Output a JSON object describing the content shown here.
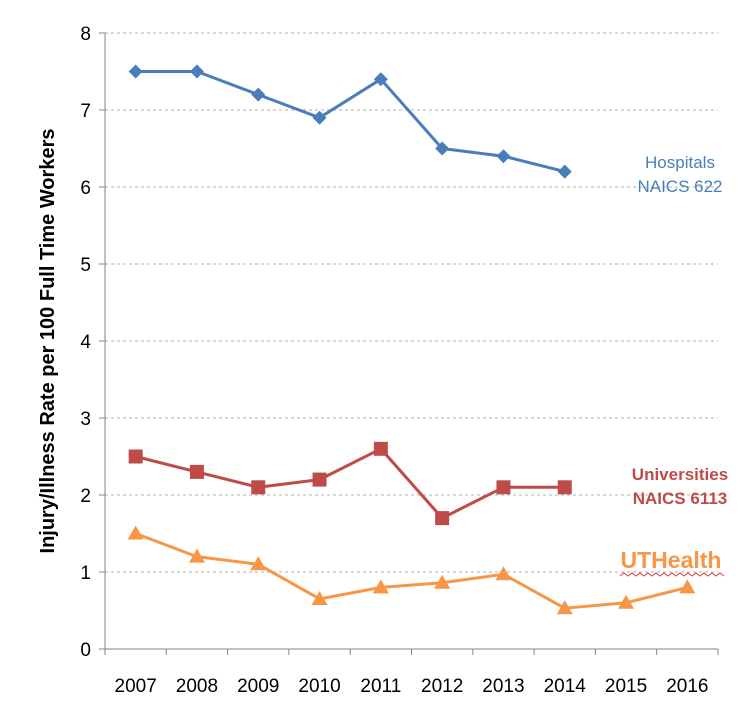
{
  "chart_data": {
    "type": "line",
    "title": "",
    "xlabel": "",
    "ylabel": "Injury/Illness Rate per 100 Full Time Workers",
    "categories": [
      "2007",
      "2008",
      "2009",
      "2010",
      "2011",
      "2012",
      "2013",
      "2014",
      "2015",
      "2016"
    ],
    "ylim": [
      0,
      8
    ],
    "yticks": [
      "0",
      "1",
      "2",
      "3",
      "4",
      "5",
      "6",
      "7",
      "8"
    ],
    "grid": true,
    "series": [
      {
        "name": "Hospitals NAICS 622",
        "label_lines": [
          "Hospitals",
          "NAICS 622"
        ],
        "color": "#4a7ebb",
        "marker": "diamond",
        "values": [
          7.5,
          7.5,
          7.2,
          6.9,
          7.4,
          6.5,
          6.4,
          6.2,
          null,
          null
        ]
      },
      {
        "name": "Universities NAICS 6113",
        "label_lines": [
          "Universities",
          "NAICS 6113"
        ],
        "color": "#be4b48",
        "marker": "square",
        "values": [
          2.5,
          2.3,
          2.1,
          2.2,
          2.6,
          1.7,
          2.1,
          2.1,
          null,
          null
        ]
      },
      {
        "name": "UTHealth",
        "label_lines": [
          "UTHealth"
        ],
        "color": "#f79646",
        "marker": "triangle",
        "values": [
          1.5,
          1.2,
          1.1,
          0.65,
          0.8,
          0.86,
          0.97,
          0.53,
          0.6,
          0.8
        ]
      }
    ]
  }
}
